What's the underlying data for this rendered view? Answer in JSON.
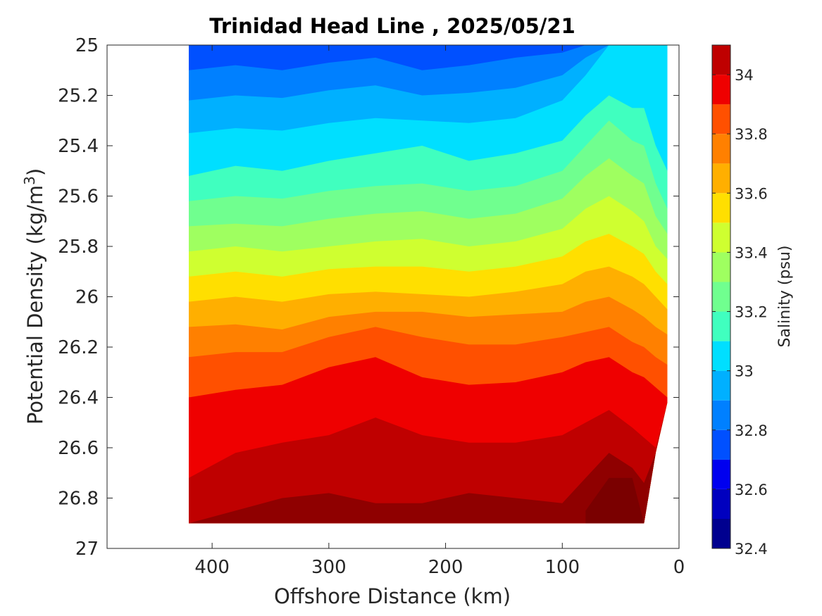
{
  "chart_data": {
    "type": "heatmap",
    "title": "Trinidad Head Line , 2025/05/21",
    "xlabel": "Offshore Distance (km)",
    "ylabel": "Potential Density (kg/m",
    "ylabel_sup": "3",
    "ylabel_close": ")",
    "colorbar_label": "Salinity (psu)",
    "xlim": [
      490,
      0
    ],
    "ylim": [
      25,
      27
    ],
    "x_ticks": [
      400,
      300,
      200,
      100,
      0
    ],
    "x_tick_labels": [
      "400",
      "300",
      "200",
      "100",
      "0"
    ],
    "y_ticks": [
      25,
      25.2,
      25.4,
      25.6,
      25.8,
      26,
      26.2,
      26.4,
      26.6,
      26.8,
      27
    ],
    "y_tick_labels": [
      "25",
      "25.2",
      "25.4",
      "25.6",
      "25.8",
      "26",
      "26.2",
      "26.4",
      "26.6",
      "26.8",
      "27"
    ],
    "colorbar_range": [
      32.4,
      34.1
    ],
    "colorbar_ticks": [
      32.4,
      32.6,
      32.8,
      33,
      33.2,
      33.4,
      33.6,
      33.8,
      34
    ],
    "colorbar_tick_labels": [
      "32.4",
      "32.6",
      "32.8",
      "33",
      "33.2",
      "33.4",
      "33.6",
      "33.8",
      "34"
    ],
    "levels": [
      32.4,
      32.5,
      32.6,
      32.7,
      32.8,
      32.9,
      33.0,
      33.1,
      33.2,
      33.3,
      33.4,
      33.5,
      33.6,
      33.7,
      33.8,
      33.9,
      34.0,
      34.1
    ],
    "level_colors": [
      "#00008f",
      "#0000bf",
      "#0000ef",
      "#0020ff",
      "#0050ff",
      "#0080ff",
      "#00b0ff",
      "#00dfff",
      "#10ffef",
      "#40ffbf",
      "#70ff8f",
      "#9fff60",
      "#cfff30",
      "#ffff00",
      "#ffdf00",
      "#ffaf00",
      "#ff8000",
      "#ff5000",
      "#ff2000",
      "#ef0000",
      "#bf0000",
      "#8f0000"
    ],
    "distance_km": [
      420,
      380,
      340,
      300,
      260,
      220,
      180,
      140,
      100,
      80,
      60,
      40,
      30,
      20,
      10
    ],
    "density_bottom": [
      26.9,
      26.9,
      26.9,
      26.9,
      26.9,
      26.9,
      26.9,
      26.9,
      26.9,
      26.9,
      26.9,
      26.9,
      26.9,
      26.62,
      26.42
    ],
    "salinity_isolines": {
      "32.8": [
        25.1,
        25.08,
        25.1,
        25.07,
        25.05,
        25.1,
        25.08,
        25.05,
        25.03,
        25.0,
        25.0,
        25.0,
        25.0,
        25.0,
        25.0
      ],
      "32.9": [
        25.22,
        25.2,
        25.21,
        25.18,
        25.16,
        25.2,
        25.19,
        25.17,
        25.12,
        25.05,
        25.0,
        25.0,
        25.0,
        25.0,
        25.0
      ],
      "33.0": [
        25.35,
        25.33,
        25.34,
        25.31,
        25.29,
        25.3,
        25.31,
        25.29,
        25.22,
        25.12,
        25.0,
        25.0,
        25.0,
        25.0,
        25.0
      ],
      "33.1": [
        25.52,
        25.48,
        25.5,
        25.46,
        25.43,
        25.4,
        25.46,
        25.43,
        25.38,
        25.28,
        25.2,
        25.25,
        25.25,
        25.4,
        25.5
      ],
      "33.2": [
        25.62,
        25.6,
        25.61,
        25.58,
        25.56,
        25.55,
        25.58,
        25.56,
        25.5,
        25.4,
        25.3,
        25.38,
        25.4,
        25.55,
        25.65
      ],
      "33.3": [
        25.72,
        25.71,
        25.72,
        25.69,
        25.67,
        25.66,
        25.69,
        25.67,
        25.61,
        25.52,
        25.45,
        25.52,
        25.55,
        25.68,
        25.75
      ],
      "33.4": [
        25.82,
        25.8,
        25.82,
        25.8,
        25.78,
        25.77,
        25.8,
        25.78,
        25.73,
        25.65,
        25.6,
        25.66,
        25.7,
        25.8,
        25.85
      ],
      "33.5": [
        25.92,
        25.9,
        25.92,
        25.89,
        25.88,
        25.88,
        25.9,
        25.88,
        25.84,
        25.78,
        25.75,
        25.8,
        25.83,
        25.9,
        25.95
      ],
      "33.6": [
        26.02,
        26.0,
        26.02,
        25.99,
        25.98,
        25.99,
        26.0,
        25.98,
        25.95,
        25.9,
        25.88,
        25.92,
        25.95,
        26.0,
        26.05
      ],
      "33.7": [
        26.12,
        26.11,
        26.13,
        26.08,
        26.06,
        26.06,
        26.08,
        26.07,
        26.06,
        26.02,
        26.0,
        26.05,
        26.08,
        26.12,
        26.15
      ],
      "33.8": [
        26.24,
        26.22,
        26.22,
        26.16,
        26.12,
        26.16,
        26.19,
        26.19,
        26.16,
        26.14,
        26.12,
        26.18,
        26.2,
        26.24,
        26.27
      ],
      "33.9": [
        26.4,
        26.37,
        26.35,
        26.28,
        26.24,
        26.32,
        26.35,
        26.34,
        26.3,
        26.26,
        26.24,
        26.3,
        26.32,
        26.36,
        26.4
      ],
      "34.0": [
        26.72,
        26.62,
        26.58,
        26.55,
        26.48,
        26.55,
        26.58,
        26.58,
        26.55,
        26.5,
        26.45,
        26.52,
        26.56,
        26.6,
        26.42
      ],
      "34.1": [
        26.9,
        26.85,
        26.8,
        26.78,
        26.82,
        26.82,
        26.78,
        26.8,
        26.82,
        26.72,
        26.62,
        26.68,
        26.74,
        26.62,
        26.42
      ]
    },
    "maximum_core": {
      "x": [
        80,
        60,
        40,
        30
      ],
      "density": [
        26.85,
        26.72,
        26.72,
        26.9
      ]
    }
  }
}
